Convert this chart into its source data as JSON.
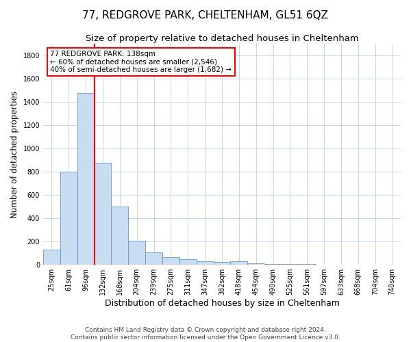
{
  "title": "77, REDGROVE PARK, CHELTENHAM, GL51 6QZ",
  "subtitle": "Size of property relative to detached houses in Cheltenham",
  "xlabel": "Distribution of detached houses by size in Cheltenham",
  "ylabel": "Number of detached properties",
  "footer1": "Contains HM Land Registry data © Crown copyright and database right 2024.",
  "footer2": "Contains public sector information licensed under the Open Government Licence v3.0.",
  "categories": [
    "25sqm",
    "61sqm",
    "96sqm",
    "132sqm",
    "168sqm",
    "204sqm",
    "239sqm",
    "275sqm",
    "311sqm",
    "347sqm",
    "382sqm",
    "418sqm",
    "454sqm",
    "490sqm",
    "525sqm",
    "561sqm",
    "597sqm",
    "633sqm",
    "668sqm",
    "704sqm",
    "740sqm"
  ],
  "values": [
    130,
    800,
    1475,
    880,
    500,
    205,
    105,
    65,
    50,
    30,
    25,
    30,
    10,
    8,
    5,
    4,
    3,
    3,
    2,
    2,
    2
  ],
  "bar_color": "#c9ddf2",
  "bar_edge_color": "#6699cc",
  "red_line_index": 3,
  "annotation_line1": "77 REDGROVE PARK: 138sqm",
  "annotation_line2": "← 60% of detached houses are smaller (2,546)",
  "annotation_line3": "40% of semi-detached houses are larger (1,682) →",
  "box_facecolor": "white",
  "box_edgecolor": "red",
  "ylim": [
    0,
    1900
  ],
  "yticks": [
    0,
    200,
    400,
    600,
    800,
    1000,
    1200,
    1400,
    1600,
    1800
  ],
  "title_fontsize": 11,
  "subtitle_fontsize": 9.5,
  "tick_fontsize": 7,
  "ylabel_fontsize": 8.5,
  "xlabel_fontsize": 9,
  "footer_fontsize": 6.5,
  "annot_fontsize": 7.5
}
